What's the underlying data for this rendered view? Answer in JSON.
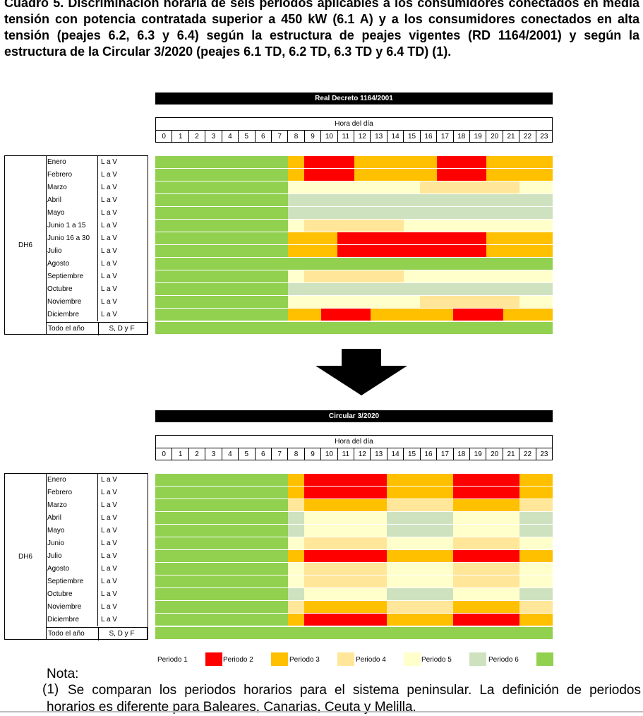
{
  "caption": "Cuadro 5. Discriminación horaria de seis periodos aplicables a los consumidores conectados en media tensión con potencia contratada superior a 450 kW (6.1 A) y a los consumidores conectados en alta tensión (peajes 6.2, 6.3 y 6.4) según la estructura de peajes vigentes (RD 1164/2001) y según la estructura de la Circular 3/2020 (peajes 6.1 TD, 6.2 TD, 6.3 TD y 6.4 TD) (1).",
  "colors": {
    "P1": "#ff0000",
    "P2": "#ffc000",
    "P3": "#ffe699",
    "P4": "#ffffcc",
    "P5": "#cfe2c0",
    "P6": "#92d050"
  },
  "hour_header": {
    "title": "Hora del día",
    "hours": [
      "0",
      "1",
      "2",
      "3",
      "4",
      "5",
      "6",
      "7",
      "8",
      "9",
      "10",
      "11",
      "12",
      "13",
      "14",
      "15",
      "16",
      "17",
      "18",
      "19",
      "20",
      "21",
      "22",
      "23"
    ]
  },
  "chart_data": [
    {
      "type": "heatmap",
      "title": "Real Decreto 1164/2001",
      "group_label": "DH6",
      "hour_axis_label": "Hora del día",
      "rows": [
        {
          "label": "Enero",
          "days": "L a V",
          "periods": [
            6,
            6,
            6,
            6,
            6,
            6,
            6,
            6,
            2,
            1,
            1,
            1,
            2,
            2,
            2,
            2,
            2,
            1,
            1,
            1,
            2,
            2,
            2,
            2
          ]
        },
        {
          "label": "Febrero",
          "days": "L a V",
          "periods": [
            6,
            6,
            6,
            6,
            6,
            6,
            6,
            6,
            2,
            1,
            1,
            1,
            2,
            2,
            2,
            2,
            2,
            1,
            1,
            1,
            2,
            2,
            2,
            2
          ]
        },
        {
          "label": "Marzo",
          "days": "L a V",
          "periods": [
            6,
            6,
            6,
            6,
            6,
            6,
            6,
            6,
            4,
            4,
            4,
            4,
            4,
            4,
            4,
            4,
            3,
            3,
            3,
            3,
            3,
            3,
            4,
            4
          ]
        },
        {
          "label": "Abril",
          "days": "L a V",
          "periods": [
            6,
            6,
            6,
            6,
            6,
            6,
            6,
            6,
            5,
            5,
            5,
            5,
            5,
            5,
            5,
            5,
            5,
            5,
            5,
            5,
            5,
            5,
            5,
            5
          ]
        },
        {
          "label": "Mayo",
          "days": "L a V",
          "periods": [
            6,
            6,
            6,
            6,
            6,
            6,
            6,
            6,
            5,
            5,
            5,
            5,
            5,
            5,
            5,
            5,
            5,
            5,
            5,
            5,
            5,
            5,
            5,
            5
          ]
        },
        {
          "label": "Junio 1 a 15",
          "days": "L a V",
          "periods": [
            6,
            6,
            6,
            6,
            6,
            6,
            6,
            6,
            4,
            3,
            3,
            3,
            3,
            3,
            3,
            4,
            4,
            4,
            4,
            4,
            4,
            4,
            4,
            4
          ]
        },
        {
          "label": "Junio 16 a 30",
          "days": "L a V",
          "periods": [
            6,
            6,
            6,
            6,
            6,
            6,
            6,
            6,
            2,
            2,
            2,
            1,
            1,
            1,
            1,
            1,
            1,
            1,
            1,
            1,
            2,
            2,
            2,
            2
          ]
        },
        {
          "label": "Julio",
          "days": "L a V",
          "periods": [
            6,
            6,
            6,
            6,
            6,
            6,
            6,
            6,
            2,
            2,
            2,
            1,
            1,
            1,
            1,
            1,
            1,
            1,
            1,
            1,
            2,
            2,
            2,
            2
          ]
        },
        {
          "label": "Agosto",
          "days": "L a V",
          "periods": [
            6,
            6,
            6,
            6,
            6,
            6,
            6,
            6,
            6,
            6,
            6,
            6,
            6,
            6,
            6,
            6,
            6,
            6,
            6,
            6,
            6,
            6,
            6,
            6
          ]
        },
        {
          "label": "Septiembre",
          "days": "L a V",
          "periods": [
            6,
            6,
            6,
            6,
            6,
            6,
            6,
            6,
            4,
            3,
            3,
            3,
            3,
            3,
            3,
            4,
            4,
            4,
            4,
            4,
            4,
            4,
            4,
            4
          ]
        },
        {
          "label": "Octubre",
          "days": "L a V",
          "periods": [
            6,
            6,
            6,
            6,
            6,
            6,
            6,
            6,
            5,
            5,
            5,
            5,
            5,
            5,
            5,
            5,
            5,
            5,
            5,
            5,
            5,
            5,
            5,
            5
          ]
        },
        {
          "label": "Noviembre",
          "days": "L a V",
          "periods": [
            6,
            6,
            6,
            6,
            6,
            6,
            6,
            6,
            4,
            4,
            4,
            4,
            4,
            4,
            4,
            4,
            3,
            3,
            3,
            3,
            3,
            3,
            4,
            4
          ]
        },
        {
          "label": "Diciembre",
          "days": "L a V",
          "periods": [
            6,
            6,
            6,
            6,
            6,
            6,
            6,
            6,
            2,
            2,
            1,
            1,
            1,
            2,
            2,
            2,
            2,
            2,
            1,
            1,
            1,
            2,
            2,
            2
          ]
        }
      ],
      "footer": {
        "label": "Todo el año",
        "days": "S, D y F",
        "periods": [
          6,
          6,
          6,
          6,
          6,
          6,
          6,
          6,
          6,
          6,
          6,
          6,
          6,
          6,
          6,
          6,
          6,
          6,
          6,
          6,
          6,
          6,
          6,
          6
        ]
      }
    },
    {
      "type": "heatmap",
      "title": "Circular 3/2020",
      "group_label": "DH6",
      "hour_axis_label": "Hora del día",
      "rows": [
        {
          "label": "Enero",
          "days": "L a V",
          "periods": [
            6,
            6,
            6,
            6,
            6,
            6,
            6,
            6,
            2,
            1,
            1,
            1,
            1,
            1,
            2,
            2,
            2,
            2,
            1,
            1,
            1,
            1,
            2,
            2
          ]
        },
        {
          "label": "Febrero",
          "days": "L a V",
          "periods": [
            6,
            6,
            6,
            6,
            6,
            6,
            6,
            6,
            2,
            1,
            1,
            1,
            1,
            1,
            2,
            2,
            2,
            2,
            1,
            1,
            1,
            1,
            2,
            2
          ]
        },
        {
          "label": "Marzo",
          "days": "L a V",
          "periods": [
            6,
            6,
            6,
            6,
            6,
            6,
            6,
            6,
            3,
            2,
            2,
            2,
            2,
            2,
            3,
            3,
            3,
            3,
            2,
            2,
            2,
            2,
            3,
            3
          ]
        },
        {
          "label": "Abril",
          "days": "L a V",
          "periods": [
            6,
            6,
            6,
            6,
            6,
            6,
            6,
            6,
            5,
            4,
            4,
            4,
            4,
            4,
            5,
            5,
            5,
            5,
            4,
            4,
            4,
            4,
            5,
            5
          ]
        },
        {
          "label": "Mayo",
          "days": "L a V",
          "periods": [
            6,
            6,
            6,
            6,
            6,
            6,
            6,
            6,
            5,
            4,
            4,
            4,
            4,
            4,
            5,
            5,
            5,
            5,
            4,
            4,
            4,
            4,
            5,
            5
          ]
        },
        {
          "label": "Junio",
          "days": "L a V",
          "periods": [
            6,
            6,
            6,
            6,
            6,
            6,
            6,
            6,
            4,
            3,
            3,
            3,
            3,
            3,
            4,
            4,
            4,
            4,
            3,
            3,
            3,
            3,
            4,
            4
          ]
        },
        {
          "label": "Julio",
          "days": "L a V",
          "periods": [
            6,
            6,
            6,
            6,
            6,
            6,
            6,
            6,
            2,
            1,
            1,
            1,
            1,
            1,
            2,
            2,
            2,
            2,
            1,
            1,
            1,
            1,
            2,
            2
          ]
        },
        {
          "label": "Agosto",
          "days": "L a V",
          "periods": [
            6,
            6,
            6,
            6,
            6,
            6,
            6,
            6,
            4,
            3,
            3,
            3,
            3,
            3,
            4,
            4,
            4,
            4,
            3,
            3,
            3,
            3,
            4,
            4
          ]
        },
        {
          "label": "Septiembre",
          "days": "L a V",
          "periods": [
            6,
            6,
            6,
            6,
            6,
            6,
            6,
            6,
            4,
            3,
            3,
            3,
            3,
            3,
            4,
            4,
            4,
            4,
            3,
            3,
            3,
            3,
            4,
            4
          ]
        },
        {
          "label": "Octubre",
          "days": "L a V",
          "periods": [
            6,
            6,
            6,
            6,
            6,
            6,
            6,
            6,
            5,
            4,
            4,
            4,
            4,
            4,
            5,
            5,
            5,
            5,
            4,
            4,
            4,
            4,
            5,
            5
          ]
        },
        {
          "label": "Noviembre",
          "days": "L a V",
          "periods": [
            6,
            6,
            6,
            6,
            6,
            6,
            6,
            6,
            3,
            2,
            2,
            2,
            2,
            2,
            3,
            3,
            3,
            3,
            2,
            2,
            2,
            2,
            3,
            3
          ]
        },
        {
          "label": "Diciembre",
          "days": "L a V",
          "periods": [
            6,
            6,
            6,
            6,
            6,
            6,
            6,
            6,
            2,
            1,
            1,
            1,
            1,
            1,
            2,
            2,
            2,
            2,
            1,
            1,
            1,
            1,
            2,
            2
          ]
        }
      ],
      "footer": {
        "label": "Todo el año",
        "days": "S, D y F",
        "periods": [
          6,
          6,
          6,
          6,
          6,
          6,
          6,
          6,
          6,
          6,
          6,
          6,
          6,
          6,
          6,
          6,
          6,
          6,
          6,
          6,
          6,
          6,
          6,
          6
        ]
      }
    }
  ],
  "legend": [
    {
      "label": "Periodo 1",
      "period": "P1"
    },
    {
      "label": "Periodo 2",
      "period": "P2"
    },
    {
      "label": "Periodo 3",
      "period": "P3"
    },
    {
      "label": "Periodo 4",
      "period": "P4"
    },
    {
      "label": "Periodo 5",
      "period": "P5"
    },
    {
      "label": "Periodo 6",
      "period": "P6"
    }
  ],
  "note": {
    "title": "Nota:",
    "number": "(1)",
    "text": "Se comparan los periodos horarios para el sistema peninsular. La definición de periodos horarios es diferente para Baleares, Canarias, Ceuta y Melilla."
  }
}
